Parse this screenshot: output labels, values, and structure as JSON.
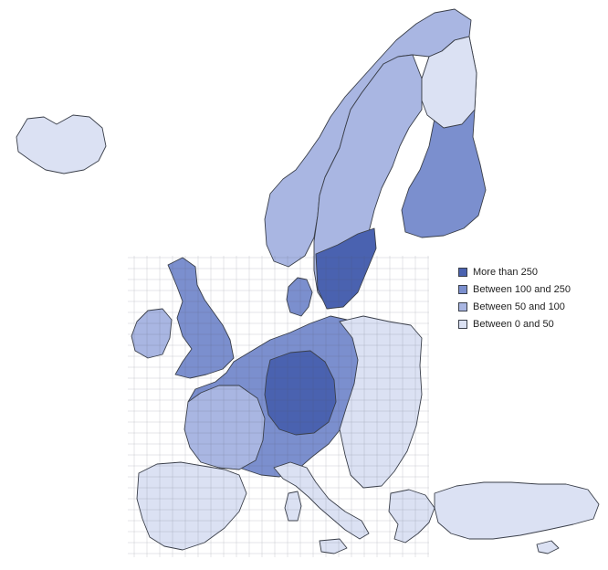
{
  "map": {
    "type": "choropleth",
    "description_name": "european-regions-choropleth",
    "legend": [
      {
        "label": "More than 250",
        "color": "#4a62b0"
      },
      {
        "label": "Between 100 and 250",
        "color": "#7b8fce"
      },
      {
        "label": "Between 50 and 100",
        "color": "#a9b6e2"
      },
      {
        "label": "Between 0 and 50",
        "color": "#dbe1f3"
      }
    ]
  }
}
